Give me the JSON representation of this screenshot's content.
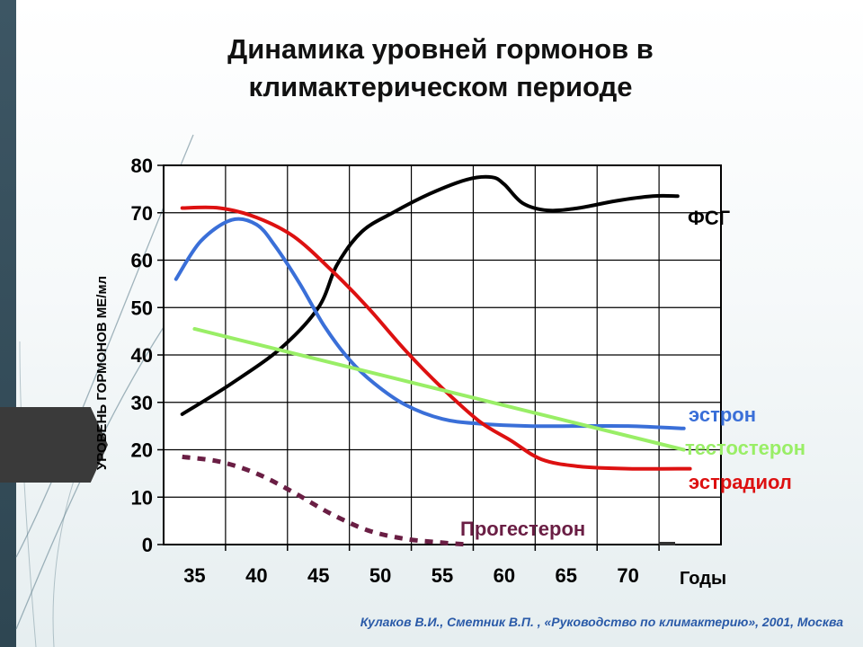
{
  "slide": {
    "title_line1": "Динамика уровней гормонов в",
    "title_line2": "климактерическом периоде",
    "citation": "Кулаков В.И., Сметник В.П. , «Руководство по климактерию», 2001, Москва"
  },
  "chart_data": {
    "type": "line",
    "ylabel": "УРОВЕНЬ ГОРМОНОВ МЕ/мл",
    "xlabel": "Годы",
    "xlim": [
      32.5,
      77.5
    ],
    "ylim": [
      0,
      80
    ],
    "x_ticks": [
      35,
      40,
      45,
      50,
      55,
      60,
      65,
      70
    ],
    "y_ticks": [
      0,
      10,
      20,
      30,
      40,
      50,
      60,
      70,
      80
    ],
    "grid": true,
    "series": [
      {
        "name": "ФСГ",
        "color": "#000000",
        "dashed": false,
        "points": [
          [
            34,
            27.5
          ],
          [
            38,
            34
          ],
          [
            42,
            41.5
          ],
          [
            45,
            50
          ],
          [
            46.5,
            59
          ],
          [
            48.5,
            66
          ],
          [
            51,
            70
          ],
          [
            54,
            74
          ],
          [
            57,
            77
          ],
          [
            59,
            77.5
          ],
          [
            60,
            76
          ],
          [
            61.5,
            72
          ],
          [
            63.5,
            70.5
          ],
          [
            66,
            71
          ],
          [
            69,
            72.5
          ],
          [
            72,
            73.5
          ],
          [
            74,
            73.5
          ]
        ]
      },
      {
        "name": "эстрон",
        "color": "#3a6fd8",
        "dashed": false,
        "points": [
          [
            33.5,
            56
          ],
          [
            35.5,
            64
          ],
          [
            38,
            68.5
          ],
          [
            40,
            67.5
          ],
          [
            41.5,
            63
          ],
          [
            43.5,
            55
          ],
          [
            45.5,
            46
          ],
          [
            47.5,
            39
          ],
          [
            49.5,
            34
          ],
          [
            52,
            29.5
          ],
          [
            55,
            26.5
          ],
          [
            58,
            25.5
          ],
          [
            62,
            25
          ],
          [
            66,
            25
          ],
          [
            70,
            25
          ],
          [
            74.5,
            24.5
          ]
        ]
      },
      {
        "name": "эстрадиол",
        "color": "#dd1111",
        "dashed": false,
        "points": [
          [
            34,
            71
          ],
          [
            37,
            71
          ],
          [
            40,
            69
          ],
          [
            43,
            65
          ],
          [
            46,
            58
          ],
          [
            49,
            50
          ],
          [
            52,
            41
          ],
          [
            55,
            33
          ],
          [
            58,
            26
          ],
          [
            60.5,
            22
          ],
          [
            63,
            18
          ],
          [
            66,
            16.5
          ],
          [
            70,
            16
          ],
          [
            75,
            16
          ]
        ]
      },
      {
        "name": "тестостерон",
        "color": "#99ee66",
        "dashed": false,
        "points": [
          [
            35,
            45.5
          ],
          [
            74.5,
            20
          ]
        ]
      },
      {
        "name": "Прогестерон",
        "color": "#6a1e44",
        "dashed": true,
        "points": [
          [
            34,
            18.5
          ],
          [
            37,
            17.5
          ],
          [
            40,
            15
          ],
          [
            43,
            11
          ],
          [
            46,
            6.5
          ],
          [
            49,
            3
          ],
          [
            52,
            1.2
          ],
          [
            55,
            0.4
          ],
          [
            57,
            0
          ]
        ]
      }
    ]
  }
}
